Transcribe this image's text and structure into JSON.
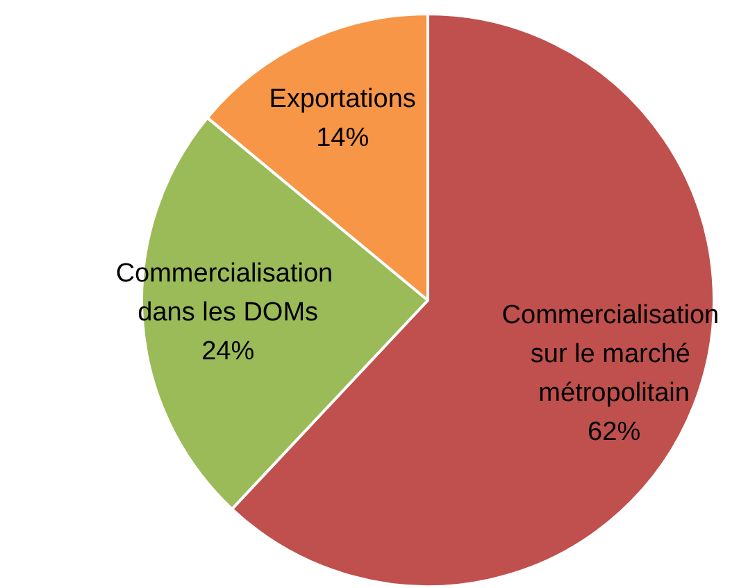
{
  "chart_data": {
    "type": "pie",
    "categories": [
      "Commercialisation sur le marché métropolitain",
      "Commercialisation dans les DOMs",
      "Exportations"
    ],
    "values": [
      62,
      24,
      14
    ],
    "value_labels": [
      "62%",
      "24%",
      "14%"
    ],
    "colors": [
      "#c0504d",
      "#9bbb59",
      "#f79646"
    ]
  }
}
